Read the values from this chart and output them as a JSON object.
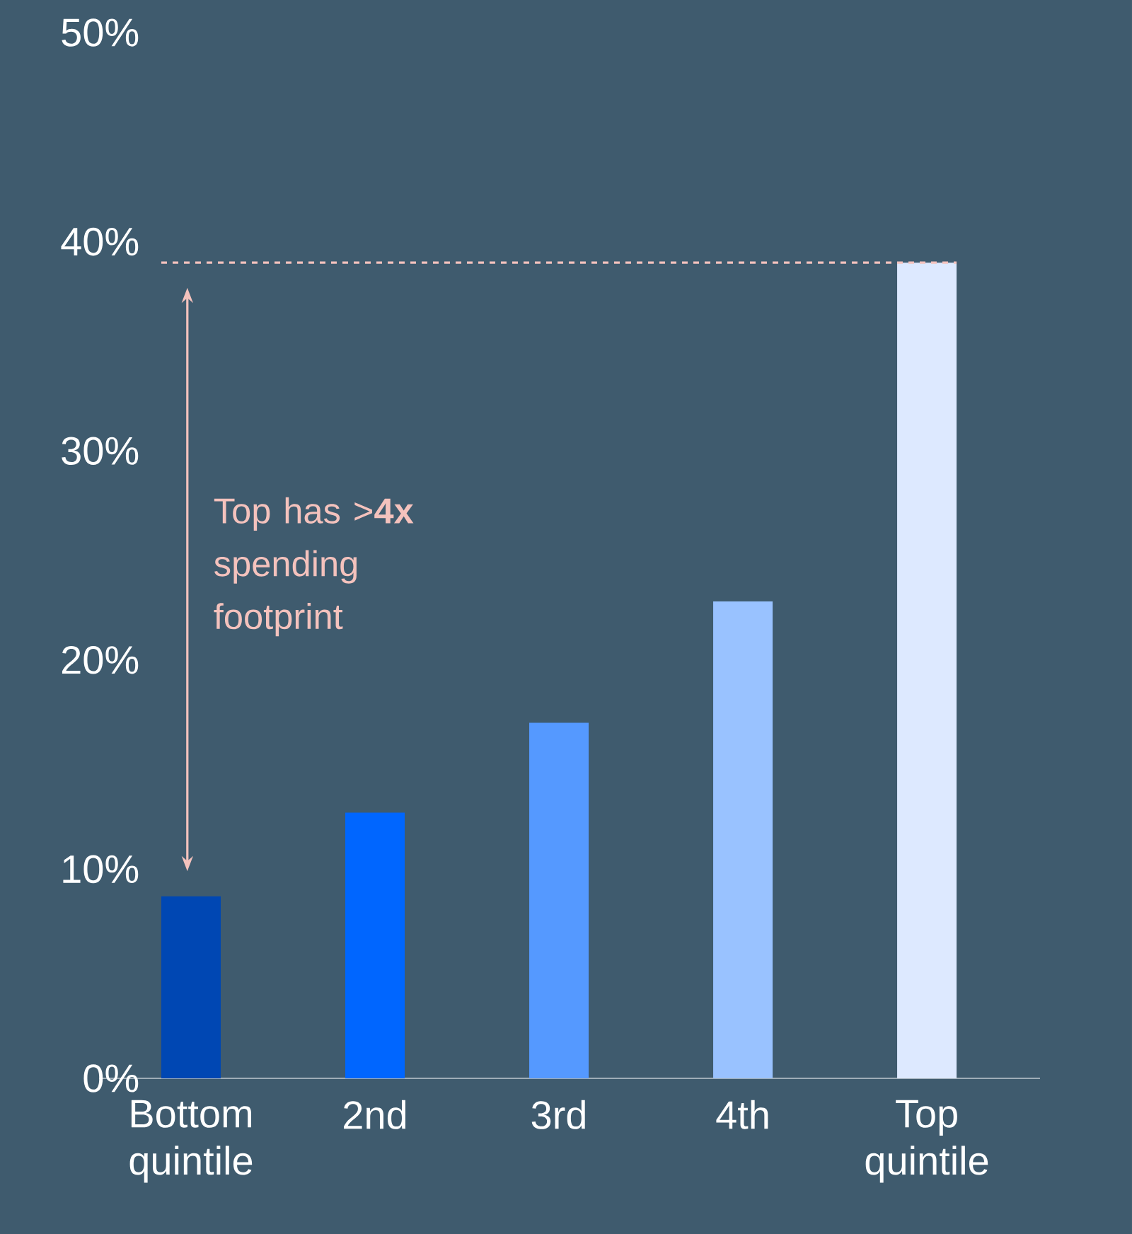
{
  "chart_data": {
    "type": "bar",
    "categories": [
      "Bottom quintile",
      "2nd",
      "3rd",
      "4th",
      "Top quintile"
    ],
    "values": [
      8.7,
      12.7,
      17.0,
      22.8,
      39.0
    ],
    "colors": [
      "#0047b3",
      "#0066ff",
      "#5599ff",
      "#99c2ff",
      "#dde9ff"
    ],
    "ylim": [
      0,
      50
    ],
    "yticks": [
      {
        "value": 0,
        "label": "0%"
      },
      {
        "value": 10,
        "label": "10%"
      },
      {
        "value": 20,
        "label": "20%"
      },
      {
        "value": 30,
        "label": "30%"
      },
      {
        "value": 40,
        "label": "40%"
      },
      {
        "value": 50,
        "label": "50%"
      }
    ],
    "ref_lines": [
      {
        "axis": "y",
        "value": 39.0,
        "color": "#f4c2bd",
        "line_style": "dashed"
      }
    ],
    "annotations": [
      "Top has >**4x** spending footprint"
    ]
  }
}
